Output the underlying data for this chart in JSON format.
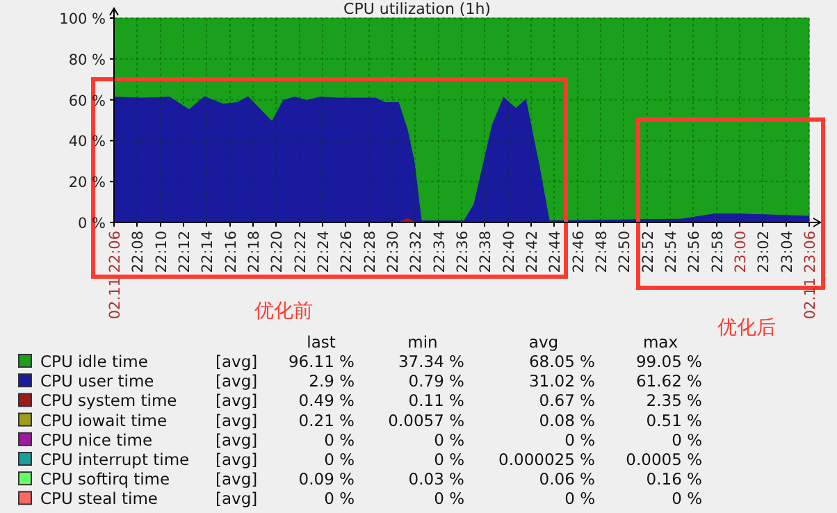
{
  "chart_data": {
    "type": "area",
    "title": "CPU utilization (1h)",
    "stacked": true,
    "grid": true,
    "legend": "bottom",
    "x": [
      22.1,
      22.143,
      22.18,
      22.208,
      22.23,
      22.257,
      22.277,
      22.293,
      22.327,
      22.343,
      22.36,
      22.377,
      22.397,
      22.423,
      22.477,
      22.49,
      22.51,
      22.523,
      22.533,
      22.543,
      22.603,
      22.617,
      22.643,
      22.66,
      22.678,
      22.693,
      22.713,
      22.727,
      22.8,
      22.867,
      22.917,
      22.963,
      23.0,
      23.05,
      23.1
    ],
    "xlim": [
      22.1,
      23.1
    ],
    "ylim": [
      0,
      100
    ],
    "yticks": [
      {
        "value": 0,
        "label": "0 %"
      },
      {
        "value": 20,
        "label": "20 %"
      },
      {
        "value": 40,
        "label": "40 %"
      },
      {
        "value": 60,
        "label": "60 %"
      },
      {
        "value": 80,
        "label": "80 %"
      },
      {
        "value": 100,
        "label": "100 %"
      }
    ],
    "xticks": [
      {
        "value": 22.1,
        "label": "02.11 22:06"
      },
      {
        "value": 22.133,
        "label": "22:08"
      },
      {
        "value": 22.167,
        "label": "22:10"
      },
      {
        "value": 22.2,
        "label": "22:12"
      },
      {
        "value": 22.233,
        "label": "22:14"
      },
      {
        "value": 22.267,
        "label": "22:16"
      },
      {
        "value": 22.3,
        "label": "22:18"
      },
      {
        "value": 22.333,
        "label": "22:20"
      },
      {
        "value": 22.367,
        "label": "22:22"
      },
      {
        "value": 22.4,
        "label": "22:24"
      },
      {
        "value": 22.433,
        "label": "22:26"
      },
      {
        "value": 22.467,
        "label": "22:28"
      },
      {
        "value": 22.5,
        "label": "22:30"
      },
      {
        "value": 22.533,
        "label": "22:32"
      },
      {
        "value": 22.567,
        "label": "22:34"
      },
      {
        "value": 22.6,
        "label": "22:36"
      },
      {
        "value": 22.633,
        "label": "22:38"
      },
      {
        "value": 22.667,
        "label": "22:40"
      },
      {
        "value": 22.7,
        "label": "22:42"
      },
      {
        "value": 22.733,
        "label": "22:44"
      },
      {
        "value": 22.767,
        "label": "22:46"
      },
      {
        "value": 22.8,
        "label": "22:48"
      },
      {
        "value": 22.833,
        "label": "22:50"
      },
      {
        "value": 22.867,
        "label": "22:52"
      },
      {
        "value": 22.9,
        "label": "22:54"
      },
      {
        "value": 22.933,
        "label": "22:56"
      },
      {
        "value": 22.967,
        "label": "22:58"
      },
      {
        "value": 23.0,
        "label": "23:00"
      },
      {
        "value": 23.033,
        "label": "23:02"
      },
      {
        "value": 23.067,
        "label": "23:04"
      },
      {
        "value": 23.1,
        "label": "02.11 23:06"
      }
    ],
    "series": [
      {
        "name": "CPU steal time",
        "color": "#ff6666",
        "values": [
          null,
          null,
          null,
          null,
          null,
          null,
          null,
          null,
          null,
          null,
          null,
          null,
          null,
          null,
          null,
          null,
          null,
          null,
          null,
          null,
          null,
          null,
          null,
          null,
          null,
          null,
          null,
          null,
          null,
          null,
          null,
          null,
          null,
          null,
          null
        ]
      },
      {
        "name": "CPU softirq time",
        "color": "#66ff66",
        "values": [
          null,
          null,
          null,
          null,
          null,
          null,
          null,
          null,
          null,
          null,
          null,
          null,
          null,
          null,
          null,
          null,
          null,
          null,
          null,
          null,
          null,
          null,
          null,
          null,
          null,
          null,
          null,
          null,
          null,
          null,
          null,
          null,
          null,
          null,
          null
        ]
      },
      {
        "name": "CPU interrupt time",
        "color": "#1a9e9e",
        "values": [
          null,
          null,
          null,
          null,
          null,
          null,
          null,
          null,
          null,
          null,
          null,
          null,
          null,
          null,
          null,
          null,
          null,
          null,
          null,
          null,
          null,
          null,
          null,
          null,
          null,
          null,
          null,
          null,
          null,
          null,
          null,
          null,
          null,
          null,
          null
        ]
      },
      {
        "name": "CPU nice time",
        "color": "#9e1a9e",
        "values": [
          null,
          null,
          null,
          null,
          null,
          null,
          null,
          null,
          null,
          null,
          null,
          null,
          null,
          null,
          null,
          null,
          null,
          null,
          null,
          null,
          null,
          null,
          null,
          null,
          null,
          null,
          null,
          null,
          null,
          null,
          null,
          null,
          null,
          null,
          null
        ]
      },
      {
        "name": "CPU iowait time",
        "color": "#9e9e1a",
        "values": [
          null,
          null,
          null,
          null,
          null,
          null,
          null,
          null,
          null,
          null,
          null,
          null,
          null,
          null,
          null,
          null,
          null,
          null,
          null,
          null,
          null,
          null,
          null,
          null,
          null,
          null,
          null,
          null,
          null,
          null,
          null,
          null,
          null,
          null,
          null
        ]
      },
      {
        "name": "CPU system time",
        "color": "#9e1a1a",
        "values": [
          0.5,
          0.5,
          0.5,
          0.5,
          0.5,
          0.5,
          0.5,
          0.5,
          0.5,
          0.5,
          0.5,
          0.5,
          0.5,
          0.5,
          0.5,
          0.5,
          0.5,
          2.3,
          0.5,
          0.5,
          0.5,
          0.5,
          0.5,
          0.5,
          0.5,
          0.5,
          0.5,
          0.5,
          0.5,
          0.5,
          0.5,
          0.5,
          0.5,
          0.5,
          0.5
        ]
      },
      {
        "name": "CPU user time",
        "color": "#1a1a9f",
        "values": [
          61.2,
          60.7,
          61.2,
          55.1,
          61.4,
          57.8,
          58.5,
          61.4,
          49.4,
          59.6,
          61.2,
          59.6,
          61.2,
          60.7,
          60.7,
          58.5,
          58.5,
          43.1,
          29.0,
          0.6,
          0.6,
          8.5,
          47.1,
          61.2,
          55.7,
          60.2,
          26.7,
          0.6,
          1.0,
          1.3,
          1.5,
          4.0,
          4.0,
          3.5,
          2.9
        ]
      },
      {
        "name": "CPU idle time",
        "color": "#1aa01a",
        "values": [
          38.3,
          38.8,
          38.3,
          44.4,
          38.1,
          41.7,
          41.0,
          38.1,
          50.1,
          39.9,
          38.3,
          39.9,
          38.3,
          38.8,
          38.8,
          41.0,
          41.0,
          54.6,
          70.5,
          98.9,
          98.9,
          91.0,
          52.4,
          38.3,
          43.8,
          39.3,
          72.8,
          98.9,
          98.5,
          98.2,
          98.0,
          95.5,
          95.5,
          96.0,
          96.6
        ]
      }
    ],
    "annotations": [
      "优化前",
      "优化后",
      "last",
      "min",
      "avg",
      "max",
      "[avg]",
      "96.11 %",
      "37.34 %",
      "68.05 %",
      "99.05 %",
      "[avg]",
      "2.9 %",
      "0.79 %",
      "31.02 %",
      "61.62 %",
      "[avg]",
      "0.49 %",
      "0.11 %",
      "0.67 %",
      "2.35 %",
      "[avg]",
      "0.21 %",
      "0.0057 %",
      "0.08 %",
      "0.51 %",
      "[avg]",
      "0 %",
      "0 %",
      "0 %",
      "0 %",
      "[avg]",
      "0 %",
      "0 %",
      "0.000025 %",
      "0.0005 %",
      "[avg]",
      "0.09 %",
      "0.03 %",
      "0.06 %",
      "0.16 %",
      "[avg]",
      "0 %",
      "0 %",
      "0 %",
      "0 %"
    ]
  }
}
